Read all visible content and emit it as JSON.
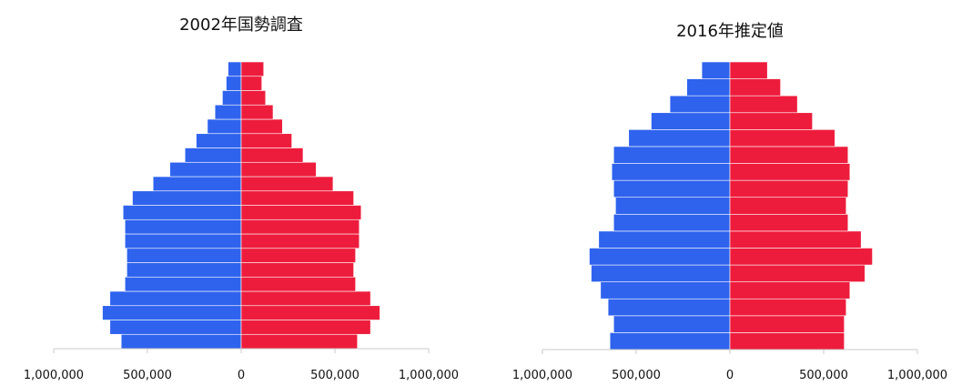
{
  "colors": {
    "male": "#2f63ee",
    "female": "#ee1c3c",
    "axis": "#c8c8c8",
    "text": "#111111",
    "separator": "#ffffff"
  },
  "chart_data": [
    {
      "type": "bar",
      "title": "2002年国勢調査",
      "orientation": "horizontal-population-pyramid",
      "xlim": [
        -1000000,
        1000000
      ],
      "xtick_values": [
        -1000000,
        -500000,
        0,
        500000,
        1000000
      ],
      "xtick_labels": [
        "1,000,000",
        "500,000",
        "0",
        "500,000",
        "1,000,000"
      ],
      "series": [
        {
          "side": "left",
          "values": [
            640000,
            700000,
            740000,
            700000,
            620000,
            610000,
            610000,
            620000,
            620000,
            630000,
            580000,
            470000,
            380000,
            300000,
            240000,
            180000,
            140000,
            100000,
            80000,
            70000
          ]
        },
        {
          "side": "right",
          "values": [
            620000,
            690000,
            740000,
            690000,
            610000,
            600000,
            610000,
            630000,
            630000,
            640000,
            600000,
            490000,
            400000,
            330000,
            270000,
            220000,
            170000,
            130000,
            110000,
            120000
          ]
        }
      ]
    },
    {
      "type": "bar",
      "title": "2016年推定値",
      "orientation": "horizontal-population-pyramid",
      "xlim": [
        -1000000,
        1000000
      ],
      "xtick_values": [
        -1000000,
        -500000,
        0,
        500000,
        1000000
      ],
      "xtick_labels": [
        "1,000,000",
        "500,000",
        "0",
        "500,000",
        "1,000,000"
      ],
      "series": [
        {
          "side": "left",
          "values": [
            640000,
            620000,
            650000,
            690000,
            740000,
            750000,
            700000,
            620000,
            610000,
            620000,
            630000,
            620000,
            540000,
            420000,
            320000,
            230000,
            150000
          ]
        },
        {
          "side": "right",
          "values": [
            610000,
            610000,
            620000,
            640000,
            720000,
            760000,
            700000,
            630000,
            620000,
            630000,
            640000,
            630000,
            560000,
            440000,
            360000,
            270000,
            200000
          ]
        }
      ]
    }
  ]
}
